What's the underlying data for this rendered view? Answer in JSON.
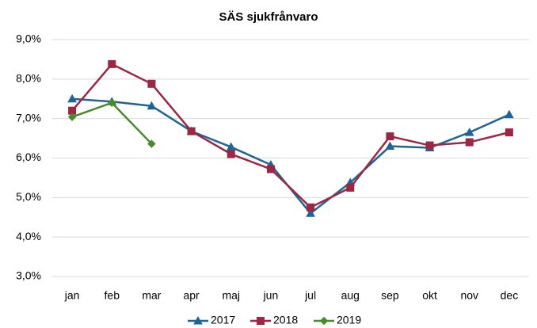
{
  "chart_data": {
    "type": "line",
    "title": "SÄS sjukfrånvaro",
    "categories": [
      "jan",
      "feb",
      "mar",
      "apr",
      "maj",
      "jun",
      "jul",
      "aug",
      "sep",
      "okt",
      "nov",
      "dec"
    ],
    "series": [
      {
        "name": "2017",
        "color": "#1f6496",
        "marker": "triangle",
        "values": [
          7.5,
          7.43,
          7.32,
          6.68,
          6.28,
          5.83,
          4.6,
          5.38,
          6.3,
          6.26,
          6.65,
          7.1
        ]
      },
      {
        "name": "2018",
        "color": "#9b2743",
        "marker": "square",
        "values": [
          7.2,
          8.38,
          7.88,
          6.68,
          6.1,
          5.72,
          4.75,
          5.25,
          6.55,
          6.32,
          6.4,
          6.65
        ]
      },
      {
        "name": "2019",
        "color": "#4a8a2a",
        "marker": "diamond",
        "values": [
          7.04,
          7.4,
          6.36,
          null,
          null,
          null,
          null,
          null,
          null,
          null,
          null,
          null
        ]
      }
    ],
    "ylim": [
      3,
      9
    ],
    "yticks": [
      {
        "value": 3,
        "label": "3,0%"
      },
      {
        "value": 4,
        "label": "4,0%"
      },
      {
        "value": 5,
        "label": "5,0%"
      },
      {
        "value": 6,
        "label": "6,0%"
      },
      {
        "value": 7,
        "label": "7,0%"
      },
      {
        "value": 8,
        "label": "8,0%"
      },
      {
        "value": 9,
        "label": "9,0%"
      }
    ],
    "grid": true,
    "legend": "bottom"
  }
}
